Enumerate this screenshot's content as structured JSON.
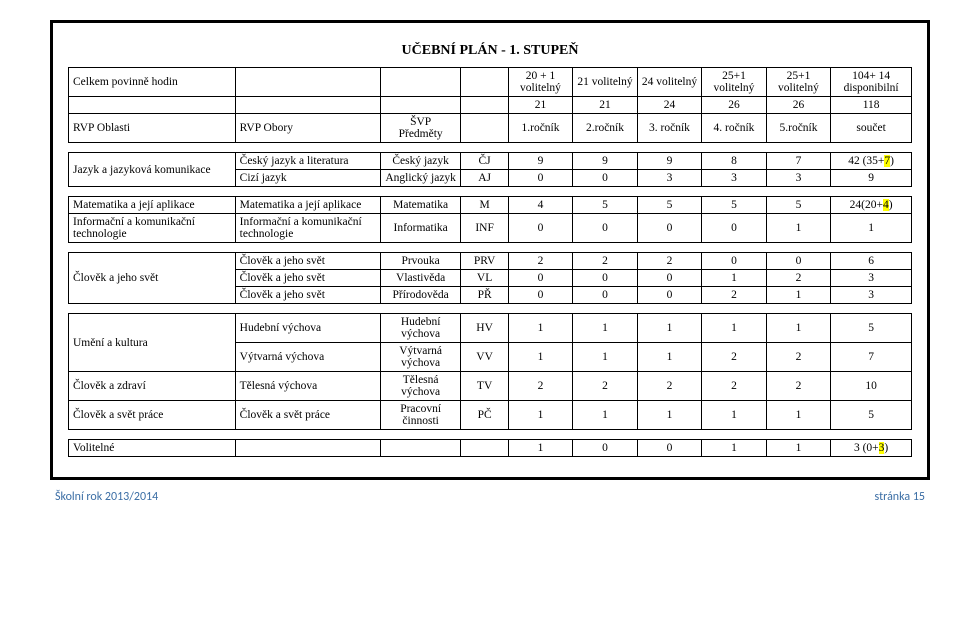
{
  "title": "UČEBNÍ PLÁN - 1. STUPEŇ",
  "header": {
    "row_totals_label": "Celkem povinně hodin",
    "rvp_oblast_label": "RVP Oblasti",
    "rvp_obor_label": "RVP Obory",
    "svp_label": "ŠVP",
    "predmety_label": "Předměty",
    "grades_top": [
      "20 + 1 volitelný",
      "21 volitelný",
      "24 volitelný",
      "25+1 volitelný",
      "25+1 volitelný",
      "104+ 14 disponibilní"
    ],
    "grades_mid": [
      "21",
      "21",
      "24",
      "26",
      "26",
      "118"
    ],
    "grades_bot": [
      "1.ročník",
      "2.ročník",
      "3. ročník",
      "4. ročník",
      "5.ročník",
      "součet"
    ]
  },
  "groups": [
    {
      "oblast": "Jazyk a jazyková komunikace",
      "rows": [
        {
          "obor": "Český jazyk a literatura",
          "predmet": "Český jazyk",
          "code": "ČJ",
          "g": [
            "9",
            "9",
            "9",
            "8",
            "7"
          ],
          "sum": "42 (35+",
          "sum_hl": "7",
          "sum_after": ")"
        },
        {
          "obor": "Cizí jazyk",
          "predmet": "Anglický jazyk",
          "code": "AJ",
          "g": [
            "0",
            "0",
            "3",
            "3",
            "3"
          ],
          "sum": "9"
        }
      ]
    },
    {
      "oblast": "Matematika a její aplikace",
      "rows": [
        {
          "obor": "Matematika a její aplikace",
          "predmet": "Matematika",
          "code": "M",
          "g": [
            "4",
            "5",
            "5",
            "5",
            "5"
          ],
          "sum": "24(20+",
          "sum_hl": "4",
          "sum_after": ")"
        }
      ]
    },
    {
      "oblast": "Informační a komunikační technologie",
      "rows": [
        {
          "obor": "Informační a komunikační technologie",
          "predmet": "Informatika",
          "code": "INF",
          "g": [
            "0",
            "0",
            "0",
            "0",
            "1"
          ],
          "sum": "1"
        }
      ]
    },
    {
      "oblast": "Člověk a jeho svět",
      "rows": [
        {
          "obor": "Člověk a jeho svět",
          "predmet": "Prvouka",
          "code": "PRV",
          "g": [
            "2",
            "2",
            "2",
            "0",
            "0"
          ],
          "sum": "6"
        },
        {
          "obor": "Člověk a jeho svět",
          "predmet": "Vlastivěda",
          "code": "VL",
          "g": [
            "0",
            "0",
            "0",
            "1",
            "2"
          ],
          "sum": "3"
        },
        {
          "obor": "Člověk a jeho svět",
          "predmet": "Přírodověda",
          "code": "PŘ",
          "g": [
            "0",
            "0",
            "0",
            "2",
            "1"
          ],
          "sum": "3"
        }
      ]
    },
    {
      "oblast": "Umění a kultura",
      "rows": [
        {
          "obor": "Hudební výchova",
          "predmet": "Hudební výchova",
          "code": "HV",
          "g": [
            "1",
            "1",
            "1",
            "1",
            "1"
          ],
          "sum": "5"
        },
        {
          "obor": "Výtvarná výchova",
          "predmet": "Výtvarná výchova",
          "code": "VV",
          "g": [
            "1",
            "1",
            "1",
            "2",
            "2"
          ],
          "sum": "7"
        }
      ]
    },
    {
      "oblast": "Člověk a zdraví",
      "rows": [
        {
          "obor": "Tělesná výchova",
          "predmet": "Tělesná výchova",
          "code": "TV",
          "g": [
            "2",
            "2",
            "2",
            "2",
            "2"
          ],
          "sum": "10"
        }
      ]
    },
    {
      "oblast": "Člověk a svět práce",
      "rows": [
        {
          "obor": "Člověk a svět práce",
          "predmet": "Pracovní činnosti",
          "code": "PČ",
          "g": [
            "1",
            "1",
            "1",
            "1",
            "1"
          ],
          "sum": "5"
        }
      ]
    },
    {
      "oblast": "Volitelné",
      "rows": [
        {
          "obor": "",
          "predmet": "",
          "code": "",
          "g": [
            "1",
            "0",
            "0",
            "1",
            "1"
          ],
          "sum": "3 (0+",
          "sum_hl": "3",
          "sum_after": ")"
        }
      ]
    }
  ],
  "footer": {
    "left": "Školní rok 2013/2014",
    "right": "stránka 15"
  },
  "colors": {
    "text": "#000000",
    "highlight": "#ffff00",
    "footer_text": "#3b6ea5",
    "border": "#000000"
  }
}
